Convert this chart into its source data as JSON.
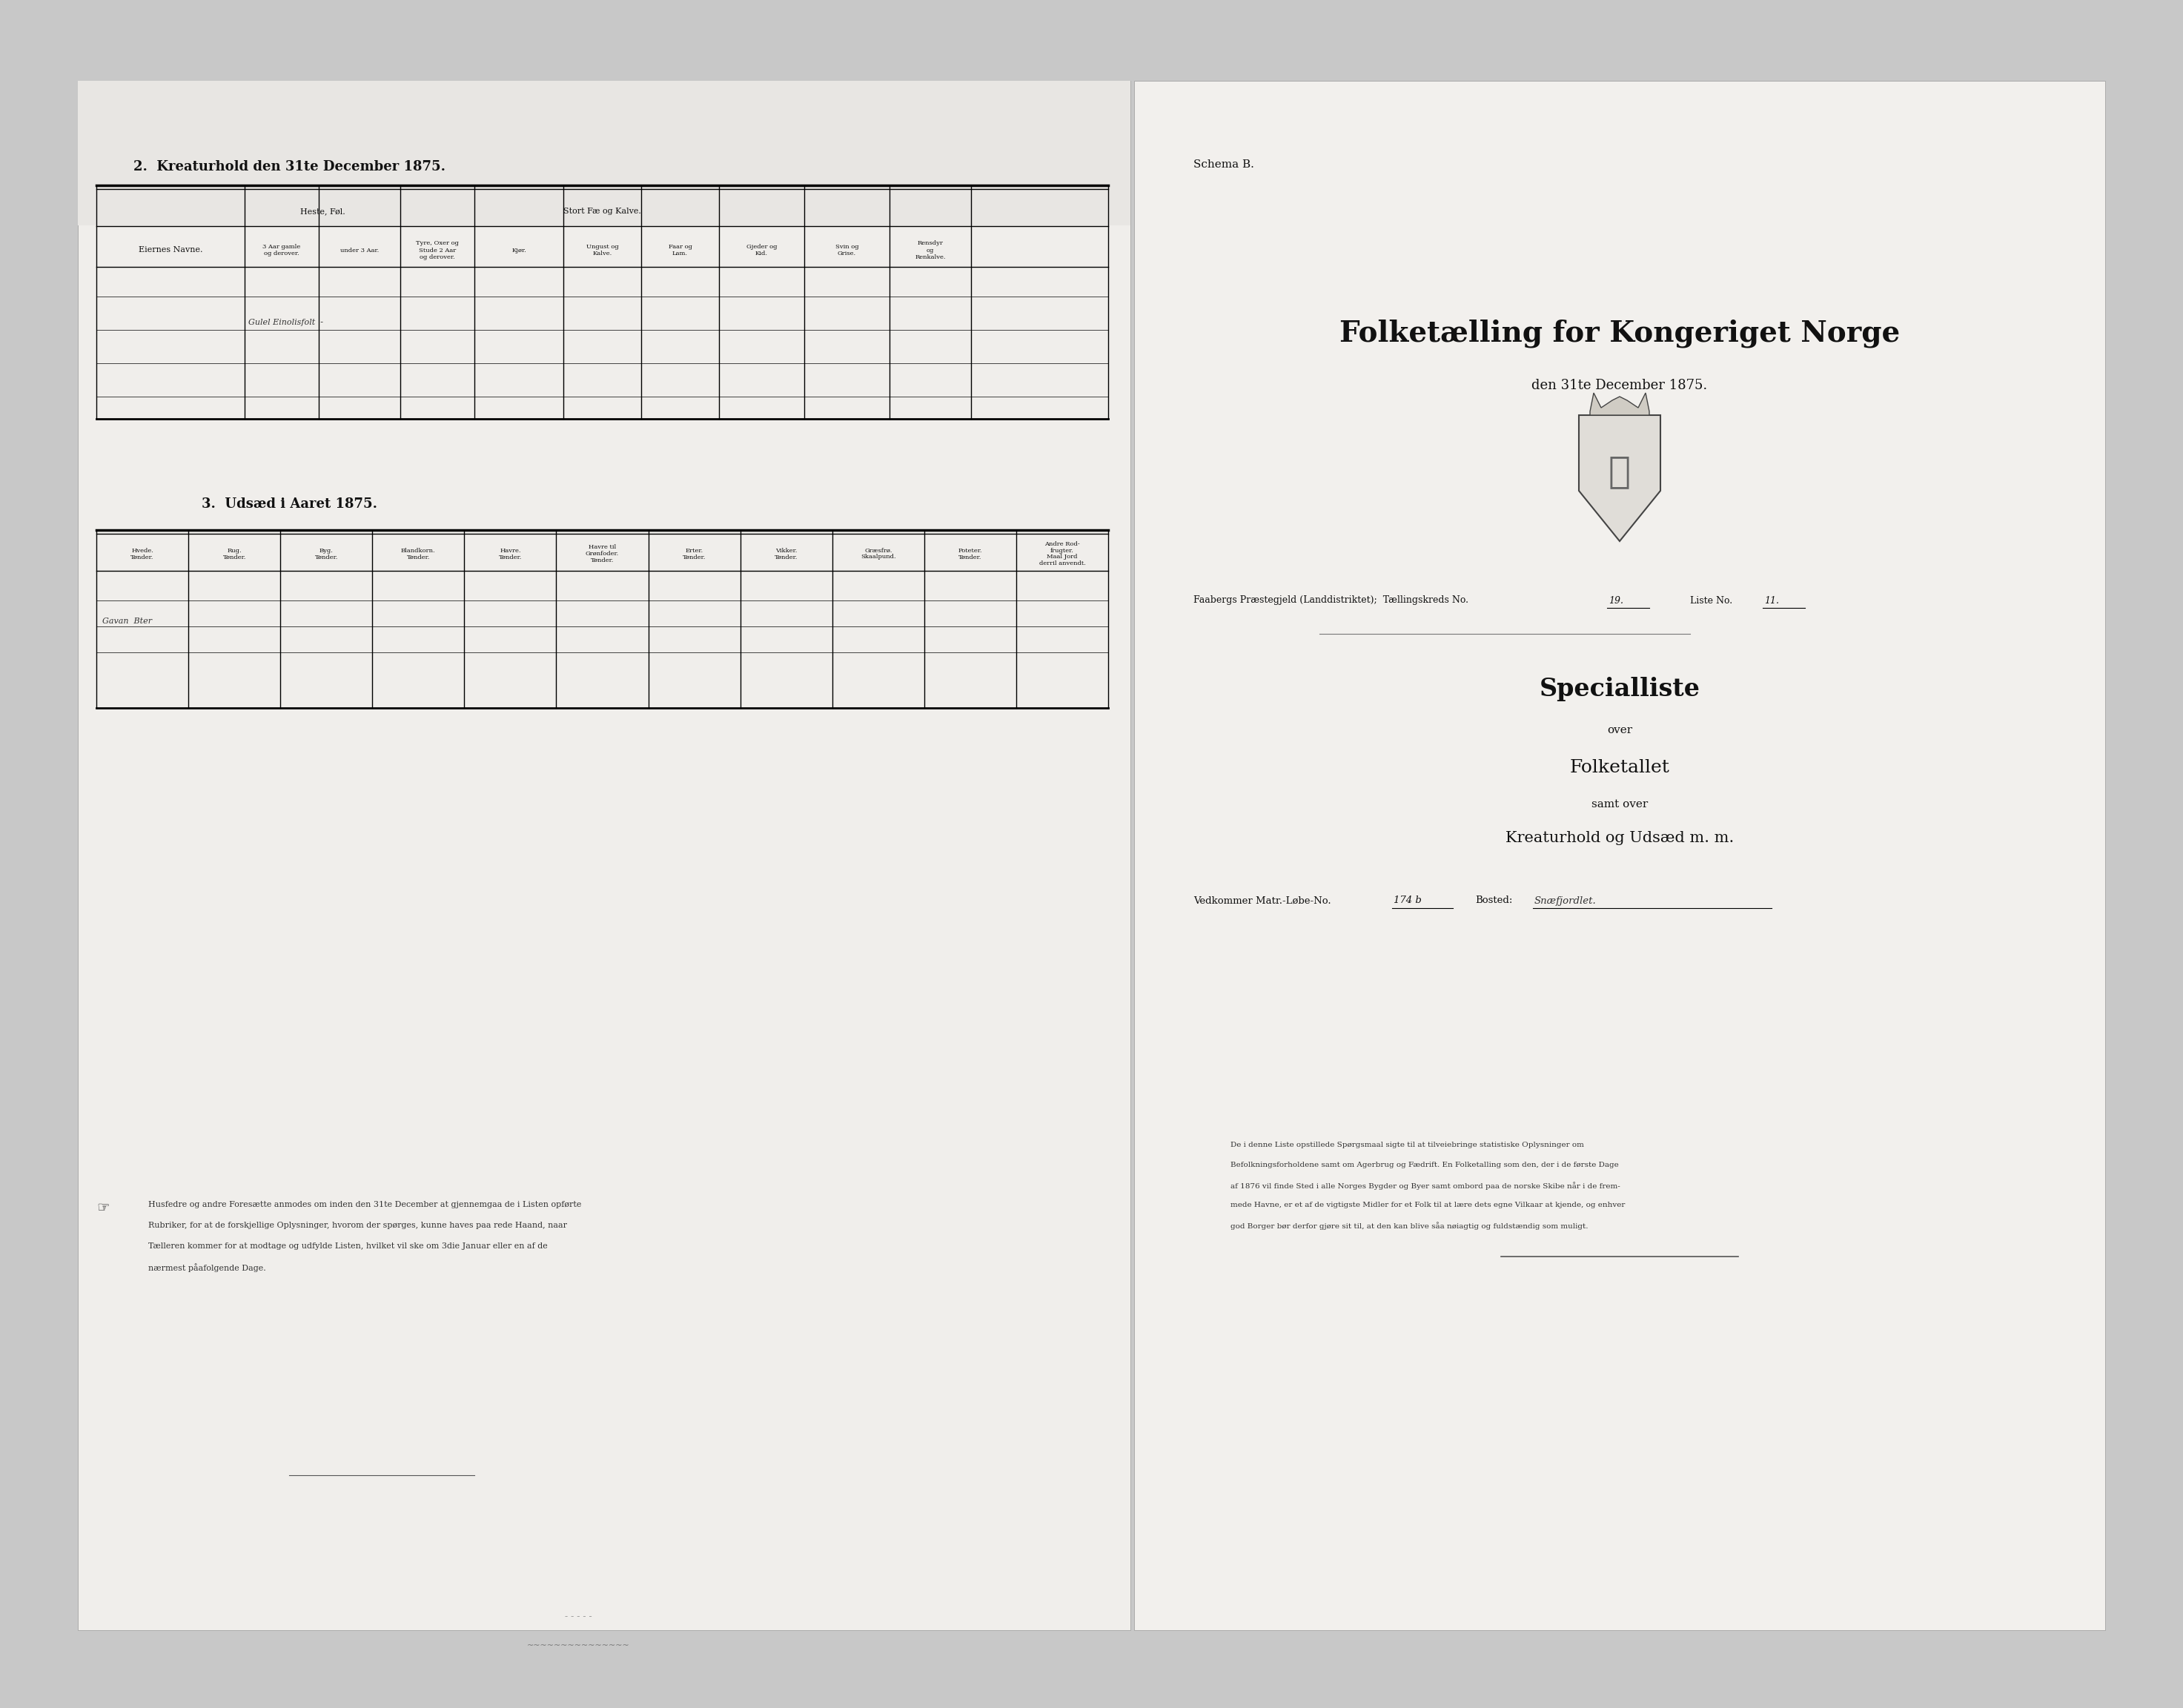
{
  "bg_color": "#c8c8c8",
  "paper_color": "#f5f3f0",
  "title1": "2.  Kreaturhold den 31te December 1875.",
  "section2_title": "3.  Udsæd i Aaret 1875.",
  "schema_b": "Schema B.",
  "main_title_line1": "Folketælling for Kongeriget Norge",
  "main_title_line2": "den 31te December 1875.",
  "subtitle1": "Specialliste",
  "subtitle2": "over",
  "subtitle3": "Folketallet",
  "subtitle4": "samt over",
  "subtitle5": "Kreaturhold og Udsæd m. m.",
  "matr_label": "Vedkommer Matr.-Løbe-No.",
  "matr_value": "174 b",
  "bosted_label": "Bosted:",
  "bosted_value": "Snæfjordlet.",
  "parish_line": "Faabergs Præstegjeld (Landdistriktet);  Tællingskreds No.",
  "parish_no": "19.",
  "liste_no_label": "Liste No.",
  "liste_no_value": "11.",
  "eiernes_navne": "Eiernes Navne.",
  "heste_header": "Heste, Føl.",
  "stort_fae_header": "Stort Fæ og Kalve.",
  "sub_col1": "3 Aar gamle\nog derover.",
  "sub_col2": "under 3 Aar.",
  "sub_col3": "Tyre, Oxer og\nStude 2 Aar\nog derover.",
  "sub_col4": "Kjør.",
  "sub_col5": "Ungust og\nKalve.",
  "sub_col6": "Faar og\nLam.",
  "sub_col7": "Gjeder og\nKid.",
  "sub_col8": "Svin og\nGrise.",
  "sub_col9": "Rensdyr\nog\nRenkalve.",
  "handwritten1": "Gulel Einolisfolt  -",
  "hvede_h": "Hvede.\nTønder.",
  "rug_h": "Rug.\nTønder.",
  "byg_h": "Byg.\nTønder.",
  "blandkorn_h": "Blandkorn.\nTønder.",
  "havre_h": "Havre.\nTønder.",
  "havretil_h": "Havre til\nGrønfoder.\nTønder.",
  "erter_h": "Erter.\nTønder.",
  "vikker_h": "Vikker.\nTønder.",
  "graesfroe_h": "Græsfrø.\nSkaalpund.",
  "poteter_h": "Poteter.\nTønder.",
  "andre_h": "Andre Rod-\nfrugter.\nMaal Jord\nderril anvendt.",
  "handwritten2": "Gavan  Bter",
  "footnote_left_line1": "Husfedre og andre Foresætte anmodes om inden den 31te December at gjennemgaa de i Listen opførte",
  "footnote_left_line2": "Rubriker, for at de forskjellige Oplysninger, hvorom der spørges, kunne haves paa rede Haand, naar",
  "footnote_left_line3": "Tælleren kommer for at modtage og udfylde Listen, hvilket vil ske om 3die Januar eller en af de",
  "footnote_left_line4": "nærmest påafolgende Dage.",
  "footnote_right_line1": "De i denne Liste opstillede Spørgsmaal sigte til at tilveiebringe statistiske Oplysninger om",
  "footnote_right_line2": "Befolkningsforholdene samt om Agerbrug og Fædrift. En Folketalling som den, der i de første Dage",
  "footnote_right_line3": "af 1876 vil finde Sted i alle Norges Bygder og Byer samt ombord paa de norske Skibe når i de frem-",
  "footnote_right_line4": "mede Havne, er et af de vigtigste Midler for et Folk til at lære dets egne Vilkaar at kjende, og enhver",
  "footnote_right_line5": "god Borger bør derfor gjøre sit til, at den kan blive såa nøiagtig og fuldstændig som muligt."
}
